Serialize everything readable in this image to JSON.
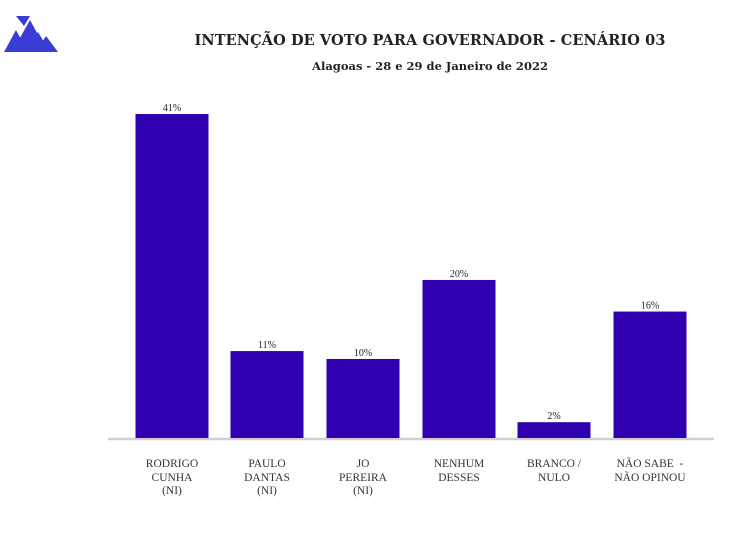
{
  "chart_data": {
    "type": "bar",
    "title": "INTENÇÃO DE VOTO PARA GOVERNADOR - CENÁRIO 03",
    "subtitle": "Alagoas - 28 e 29 de Janeiro de 2022",
    "categories": [
      [
        "RODRIGO",
        "CUNHA",
        "(NI)"
      ],
      [
        "PAULO",
        "DANTAS",
        "(NI)"
      ],
      [
        "JO",
        "PEREIRA",
        "(NI)"
      ],
      [
        "NENHUM",
        "DESSES"
      ],
      [
        "BRANCO /",
        "NULO"
      ],
      [
        "NÃO SABE  -",
        "NÃO OPINOU"
      ]
    ],
    "values": [
      41,
      11,
      10,
      20,
      2,
      16
    ],
    "value_labels": [
      "41%",
      "11%",
      "10%",
      "20%",
      "2%",
      "16%"
    ],
    "ylim": [
      0,
      41
    ],
    "bar_color": "#2e00b0",
    "grid": false
  }
}
